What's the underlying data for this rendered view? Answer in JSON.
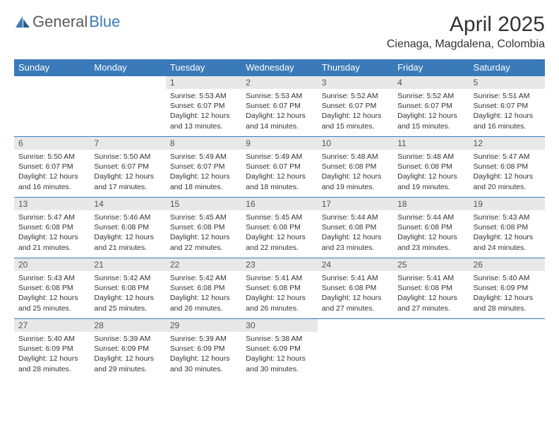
{
  "logo": {
    "text1": "General",
    "text2": "Blue"
  },
  "title": "April 2025",
  "location": "Cienaga, Magdalena, Colombia",
  "theme": {
    "header_bg": "#3a7ab8",
    "header_text": "#ffffff",
    "daynum_bg": "#e8e8e8",
    "row_border": "#3a7ab8",
    "body_text": "#333333",
    "logo_gray": "#5a5a5a",
    "logo_blue": "#3a7ab8",
    "page_bg": "#ffffff"
  },
  "typography": {
    "month_title_size_pt": 22,
    "location_size_pt": 12,
    "header_size_pt": 10,
    "daynum_size_pt": 9,
    "body_size_pt": 8
  },
  "weekdays": [
    "Sunday",
    "Monday",
    "Tuesday",
    "Wednesday",
    "Thursday",
    "Friday",
    "Saturday"
  ],
  "labels": {
    "sunrise": "Sunrise:",
    "sunset": "Sunset:",
    "daylight": "Daylight:"
  },
  "weeks": [
    [
      null,
      null,
      {
        "n": "1",
        "sr": "5:53 AM",
        "ss": "6:07 PM",
        "dl": "12 hours and 13 minutes."
      },
      {
        "n": "2",
        "sr": "5:53 AM",
        "ss": "6:07 PM",
        "dl": "12 hours and 14 minutes."
      },
      {
        "n": "3",
        "sr": "5:52 AM",
        "ss": "6:07 PM",
        "dl": "12 hours and 15 minutes."
      },
      {
        "n": "4",
        "sr": "5:52 AM",
        "ss": "6:07 PM",
        "dl": "12 hours and 15 minutes."
      },
      {
        "n": "5",
        "sr": "5:51 AM",
        "ss": "6:07 PM",
        "dl": "12 hours and 16 minutes."
      }
    ],
    [
      {
        "n": "6",
        "sr": "5:50 AM",
        "ss": "6:07 PM",
        "dl": "12 hours and 16 minutes."
      },
      {
        "n": "7",
        "sr": "5:50 AM",
        "ss": "6:07 PM",
        "dl": "12 hours and 17 minutes."
      },
      {
        "n": "8",
        "sr": "5:49 AM",
        "ss": "6:07 PM",
        "dl": "12 hours and 18 minutes."
      },
      {
        "n": "9",
        "sr": "5:49 AM",
        "ss": "6:07 PM",
        "dl": "12 hours and 18 minutes."
      },
      {
        "n": "10",
        "sr": "5:48 AM",
        "ss": "6:08 PM",
        "dl": "12 hours and 19 minutes."
      },
      {
        "n": "11",
        "sr": "5:48 AM",
        "ss": "6:08 PM",
        "dl": "12 hours and 19 minutes."
      },
      {
        "n": "12",
        "sr": "5:47 AM",
        "ss": "6:08 PM",
        "dl": "12 hours and 20 minutes."
      }
    ],
    [
      {
        "n": "13",
        "sr": "5:47 AM",
        "ss": "6:08 PM",
        "dl": "12 hours and 21 minutes."
      },
      {
        "n": "14",
        "sr": "5:46 AM",
        "ss": "6:08 PM",
        "dl": "12 hours and 21 minutes."
      },
      {
        "n": "15",
        "sr": "5:45 AM",
        "ss": "6:08 PM",
        "dl": "12 hours and 22 minutes."
      },
      {
        "n": "16",
        "sr": "5:45 AM",
        "ss": "6:08 PM",
        "dl": "12 hours and 22 minutes."
      },
      {
        "n": "17",
        "sr": "5:44 AM",
        "ss": "6:08 PM",
        "dl": "12 hours and 23 minutes."
      },
      {
        "n": "18",
        "sr": "5:44 AM",
        "ss": "6:08 PM",
        "dl": "12 hours and 23 minutes."
      },
      {
        "n": "19",
        "sr": "5:43 AM",
        "ss": "6:08 PM",
        "dl": "12 hours and 24 minutes."
      }
    ],
    [
      {
        "n": "20",
        "sr": "5:43 AM",
        "ss": "6:08 PM",
        "dl": "12 hours and 25 minutes."
      },
      {
        "n": "21",
        "sr": "5:42 AM",
        "ss": "6:08 PM",
        "dl": "12 hours and 25 minutes."
      },
      {
        "n": "22",
        "sr": "5:42 AM",
        "ss": "6:08 PM",
        "dl": "12 hours and 26 minutes."
      },
      {
        "n": "23",
        "sr": "5:41 AM",
        "ss": "6:08 PM",
        "dl": "12 hours and 26 minutes."
      },
      {
        "n": "24",
        "sr": "5:41 AM",
        "ss": "6:08 PM",
        "dl": "12 hours and 27 minutes."
      },
      {
        "n": "25",
        "sr": "5:41 AM",
        "ss": "6:08 PM",
        "dl": "12 hours and 27 minutes."
      },
      {
        "n": "26",
        "sr": "5:40 AM",
        "ss": "6:09 PM",
        "dl": "12 hours and 28 minutes."
      }
    ],
    [
      {
        "n": "27",
        "sr": "5:40 AM",
        "ss": "6:09 PM",
        "dl": "12 hours and 28 minutes."
      },
      {
        "n": "28",
        "sr": "5:39 AM",
        "ss": "6:09 PM",
        "dl": "12 hours and 29 minutes."
      },
      {
        "n": "29",
        "sr": "5:39 AM",
        "ss": "6:09 PM",
        "dl": "12 hours and 30 minutes."
      },
      {
        "n": "30",
        "sr": "5:38 AM",
        "ss": "6:09 PM",
        "dl": "12 hours and 30 minutes."
      },
      null,
      null,
      null
    ]
  ]
}
